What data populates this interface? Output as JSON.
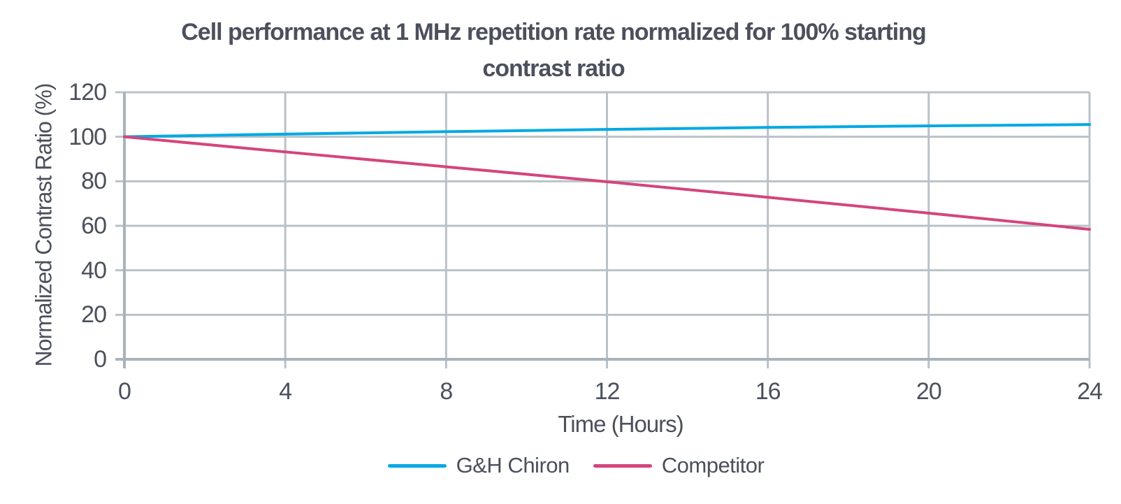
{
  "header": {
    "line1": "Cell performance at 1 MHz repetition rate normalized for 100% starting",
    "line2": "contrast ratio"
  },
  "chart_data": {
    "type": "line",
    "title": "Cell performance at 1 MHz repetition rate normalized for 100% starting contrast ratio",
    "xlabel": "Time (Hours)",
    "ylabel": "Normalized Contrast Ratio (%)",
    "xlim": [
      0,
      24
    ],
    "ylim": [
      0,
      120
    ],
    "grid": true,
    "legend_position": "bottom",
    "x": [
      0,
      4,
      8,
      12,
      16,
      20,
      24
    ],
    "x_tick_labels": [
      "0",
      "4",
      "8",
      "12",
      "16",
      "20",
      "24"
    ],
    "y_tick_values": [
      0,
      20,
      40,
      60,
      80,
      100,
      120
    ],
    "y_tick_labels": [
      "0",
      "20",
      "40",
      "60",
      "80",
      "100",
      "120"
    ],
    "series": [
      {
        "name": "G&H Chiron",
        "color": "#00a9e4",
        "values": [
          100,
          101.2,
          102.3,
          103.3,
          104.2,
          104.9,
          105.5
        ]
      },
      {
        "name": "Competitor",
        "color": "#d4457c",
        "values": [
          100,
          93.2,
          86.5,
          79.8,
          72.8,
          65.7,
          58.4
        ]
      }
    ]
  },
  "colors": {
    "text": "#4b505c",
    "gridline": "#b9c2c8",
    "axis": "#a8b3bb",
    "background": "#ffffff"
  }
}
